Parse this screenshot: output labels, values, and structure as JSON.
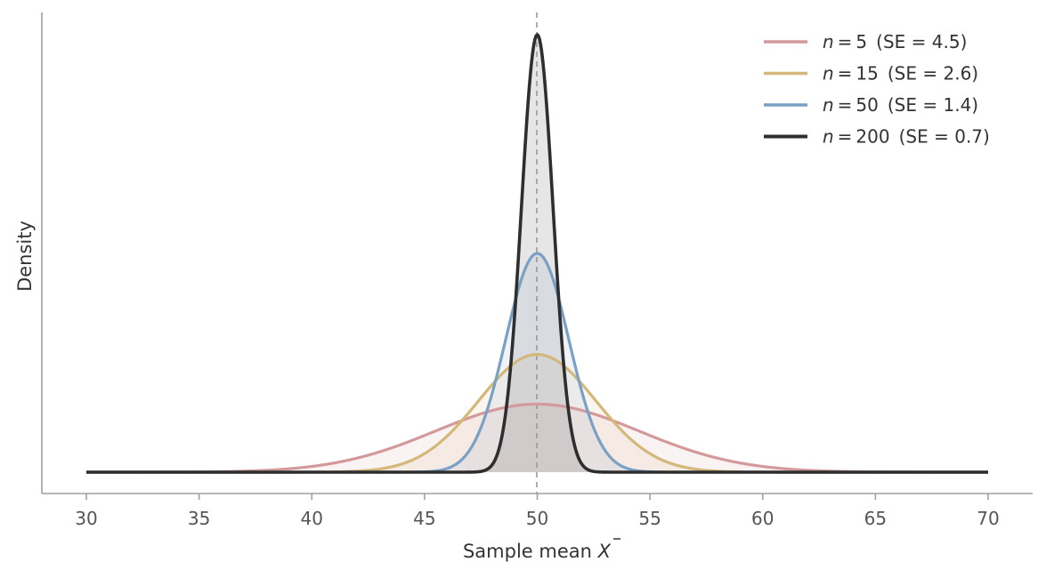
{
  "chart_data": {
    "type": "line",
    "title": "",
    "xlabel": "Sample mean X̄",
    "xlabel_main": "Sample mean ",
    "xlabel_symbol": "X",
    "ylabel": "Density",
    "xlim": [
      28,
      72
    ],
    "x_range_plotted": [
      30,
      70
    ],
    "xticks": [
      30,
      35,
      40,
      45,
      50,
      55,
      60,
      65,
      70
    ],
    "yticks": [],
    "grid": false,
    "legend_position": "upper right",
    "reference_line": {
      "x": 50,
      "style": "dashed",
      "color": "#999999"
    },
    "mean": 50,
    "series": [
      {
        "name": "n = 5  (SE = 4.5)",
        "n": "5",
        "se_text": "(SE = 4.5)",
        "n_value": 5,
        "se": 4.5,
        "color": "#d4999b",
        "fill": "#f4e4e2",
        "peak_density": 0.0887
      },
      {
        "name": "n = 15  (SE = 2.6)",
        "n": "15",
        "se_text": "(SE = 2.6)",
        "n_value": 15,
        "se": 2.6,
        "color": "#d4b87a",
        "fill": "#f5ebda",
        "peak_density": 0.1534
      },
      {
        "name": "n = 50  (SE = 1.4)",
        "n": "50",
        "se_text": "(SE = 1.4)",
        "n_value": 50,
        "se": 1.4,
        "color": "#7aa0c4",
        "fill": "#e4e8f0",
        "peak_density": 0.285
      },
      {
        "name": "n = 200  (SE = 0.7)",
        "n": "200",
        "se_text": "(SE = 0.7)",
        "n_value": 200,
        "se": 0.7,
        "color": "#2e2e2e",
        "fill": "#e8e8e8",
        "peak_density": 0.5699
      }
    ]
  }
}
